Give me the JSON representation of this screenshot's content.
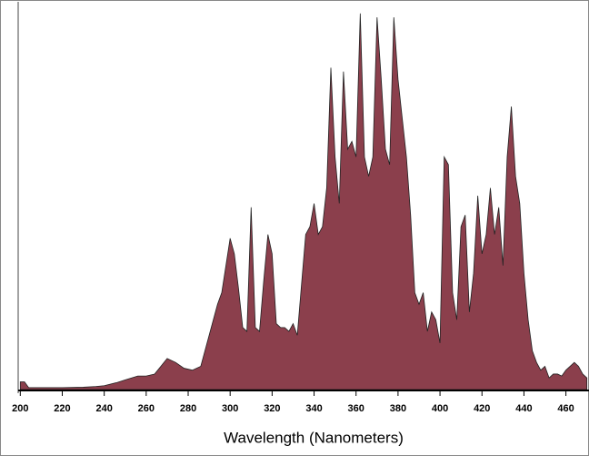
{
  "chart_data": {
    "type": "area",
    "x_label": "Wavelength (Nanometers)",
    "color": "#8b3f4c",
    "x": [
      200,
      202,
      204,
      210,
      220,
      230,
      236,
      240,
      246,
      250,
      256,
      260,
      264,
      270,
      274,
      278,
      282,
      286,
      290,
      294,
      296,
      300,
      302,
      304,
      306,
      308,
      310,
      312,
      314,
      316,
      318,
      320,
      322,
      324,
      326,
      328,
      330,
      332,
      336,
      338,
      340,
      342,
      344,
      346,
      348,
      350,
      352,
      354,
      356,
      358,
      360,
      362,
      364,
      366,
      368,
      370,
      372,
      374,
      376,
      378,
      380,
      382,
      384,
      386,
      388,
      390,
      392,
      394,
      396,
      398,
      400,
      402,
      404,
      406,
      408,
      410,
      412,
      414,
      416,
      418,
      420,
      422,
      424,
      426,
      428,
      430,
      432,
      434,
      436,
      438,
      440,
      442,
      444,
      446,
      448,
      450,
      452,
      454,
      456,
      458,
      460,
      462,
      464,
      466,
      468,
      470
    ],
    "values": [
      2,
      2,
      0.5,
      0.5,
      0.5,
      0.6,
      0.8,
      1,
      1.8,
      2.5,
      3.5,
      3.5,
      4,
      8,
      7,
      5.5,
      5,
      6,
      14,
      22,
      25,
      39,
      35,
      26,
      16,
      15,
      47,
      16,
      15,
      28,
      40,
      35,
      17,
      16,
      16,
      15,
      17,
      14,
      40,
      42,
      48,
      40,
      42,
      52,
      83,
      60,
      48,
      82,
      62,
      64,
      60,
      97,
      60,
      55,
      60,
      96,
      80,
      62,
      58,
      96,
      80,
      70,
      60,
      45,
      25,
      22,
      25,
      15,
      20,
      18,
      12,
      60,
      58,
      25,
      18,
      42,
      45,
      20,
      30,
      50,
      35,
      40,
      52,
      40,
      47,
      32,
      60,
      73,
      55,
      48,
      30,
      18,
      10,
      7,
      5,
      6,
      3,
      4,
      4,
      3.5,
      5,
      6,
      7,
      6,
      4,
      3
    ],
    "xlim": [
      199,
      471
    ],
    "ylim": [
      0,
      100
    ],
    "xticks": [
      200,
      220,
      240,
      260,
      280,
      300,
      320,
      340,
      360,
      380,
      400,
      420,
      440,
      460
    ]
  }
}
